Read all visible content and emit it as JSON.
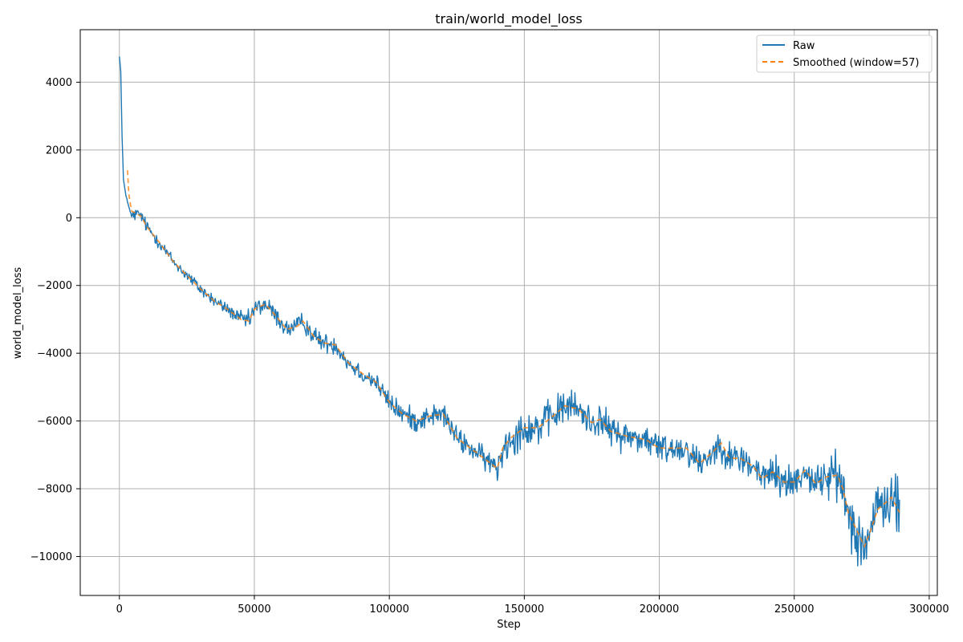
{
  "chart_data": {
    "type": "line",
    "title": "train/world_model_loss",
    "xlabel": "Step",
    "ylabel": "world_model_loss",
    "xlim": [
      -14500,
      303000
    ],
    "ylim": [
      -11150,
      5550
    ],
    "x_ticks": [
      0,
      50000,
      100000,
      150000,
      200000,
      250000,
      300000
    ],
    "y_ticks": [
      -10000,
      -8000,
      -6000,
      -4000,
      -2000,
      0,
      2000,
      4000
    ],
    "grid": true,
    "legend_position": "top-right",
    "series": [
      {
        "name": "Raw",
        "color": "#1f77b4",
        "style": "solid",
        "noise_amplitude": "varies",
        "points": [
          [
            0,
            4800
          ],
          [
            500,
            4300
          ],
          [
            1000,
            2400
          ],
          [
            1500,
            1100
          ],
          [
            2500,
            650
          ],
          [
            3500,
            300
          ],
          [
            4500,
            50
          ],
          [
            6000,
            100
          ],
          [
            8000,
            80
          ],
          [
            10000,
            -250
          ],
          [
            15000,
            -750
          ],
          [
            20000,
            -1300
          ],
          [
            25000,
            -1700
          ],
          [
            30000,
            -2100
          ],
          [
            35000,
            -2450
          ],
          [
            40000,
            -2700
          ],
          [
            45000,
            -3000
          ],
          [
            48000,
            -3050
          ],
          [
            50000,
            -2700
          ],
          [
            54000,
            -2550
          ],
          [
            58000,
            -2900
          ],
          [
            62000,
            -3300
          ],
          [
            66000,
            -3200
          ],
          [
            68000,
            -3050
          ],
          [
            72000,
            -3500
          ],
          [
            76000,
            -3700
          ],
          [
            80000,
            -3750
          ],
          [
            85000,
            -4300
          ],
          [
            90000,
            -4600
          ],
          [
            95000,
            -4850
          ],
          [
            100000,
            -5450
          ],
          [
            105000,
            -5800
          ],
          [
            110000,
            -6000
          ],
          [
            115000,
            -5850
          ],
          [
            120000,
            -5800
          ],
          [
            125000,
            -6500
          ],
          [
            130000,
            -6800
          ],
          [
            135000,
            -7100
          ],
          [
            140000,
            -7400
          ],
          [
            142000,
            -6800
          ],
          [
            145000,
            -6500
          ],
          [
            150000,
            -6200
          ],
          [
            155000,
            -6200
          ],
          [
            160000,
            -5900
          ],
          [
            165000,
            -5550
          ],
          [
            170000,
            -5650
          ],
          [
            175000,
            -6050
          ],
          [
            178000,
            -5950
          ],
          [
            182000,
            -6300
          ],
          [
            188000,
            -6450
          ],
          [
            195000,
            -6550
          ],
          [
            200000,
            -6800
          ],
          [
            205000,
            -6800
          ],
          [
            210000,
            -6800
          ],
          [
            215000,
            -7250
          ],
          [
            220000,
            -6900
          ],
          [
            223000,
            -6650
          ],
          [
            226000,
            -7100
          ],
          [
            230000,
            -7100
          ],
          [
            235000,
            -7350
          ],
          [
            238000,
            -7700
          ],
          [
            242000,
            -7500
          ],
          [
            246000,
            -7800
          ],
          [
            250000,
            -7800
          ],
          [
            254000,
            -7450
          ],
          [
            258000,
            -7850
          ],
          [
            262000,
            -7650
          ],
          [
            266000,
            -7600
          ],
          [
            268000,
            -8000
          ],
          [
            270000,
            -8700
          ],
          [
            273000,
            -9200
          ],
          [
            276000,
            -9700
          ],
          [
            278000,
            -9300
          ],
          [
            281000,
            -8600
          ],
          [
            284000,
            -8400
          ],
          [
            286000,
            -8250
          ],
          [
            289000,
            -8700
          ]
        ]
      },
      {
        "name": "Smoothed (window=57)",
        "color": "#ff7f0e",
        "style": "dashed",
        "points": [
          [
            3000,
            1400
          ],
          [
            3500,
            700
          ],
          [
            4500,
            200
          ],
          [
            6000,
            130
          ],
          [
            8000,
            50
          ],
          [
            10000,
            -250
          ],
          [
            15000,
            -750
          ],
          [
            20000,
            -1300
          ],
          [
            25000,
            -1700
          ],
          [
            30000,
            -2100
          ],
          [
            35000,
            -2450
          ],
          [
            40000,
            -2700
          ],
          [
            45000,
            -3000
          ],
          [
            48000,
            -3050
          ],
          [
            50000,
            -2700
          ],
          [
            54000,
            -2550
          ],
          [
            58000,
            -2900
          ],
          [
            62000,
            -3300
          ],
          [
            66000,
            -3200
          ],
          [
            68000,
            -3050
          ],
          [
            72000,
            -3500
          ],
          [
            76000,
            -3700
          ],
          [
            80000,
            -3750
          ],
          [
            85000,
            -4300
          ],
          [
            90000,
            -4600
          ],
          [
            95000,
            -4850
          ],
          [
            100000,
            -5450
          ],
          [
            105000,
            -5800
          ],
          [
            110000,
            -6000
          ],
          [
            115000,
            -5850
          ],
          [
            120000,
            -5800
          ],
          [
            125000,
            -6500
          ],
          [
            130000,
            -6800
          ],
          [
            135000,
            -7100
          ],
          [
            140000,
            -7400
          ],
          [
            142000,
            -6800
          ],
          [
            145000,
            -6500
          ],
          [
            150000,
            -6200
          ],
          [
            155000,
            -6200
          ],
          [
            160000,
            -5900
          ],
          [
            165000,
            -5550
          ],
          [
            170000,
            -5650
          ],
          [
            175000,
            -6050
          ],
          [
            178000,
            -5950
          ],
          [
            182000,
            -6300
          ],
          [
            188000,
            -6450
          ],
          [
            195000,
            -6550
          ],
          [
            200000,
            -6800
          ],
          [
            205000,
            -6800
          ],
          [
            210000,
            -6800
          ],
          [
            215000,
            -7250
          ],
          [
            220000,
            -6900
          ],
          [
            223000,
            -6650
          ],
          [
            226000,
            -7100
          ],
          [
            230000,
            -7100
          ],
          [
            235000,
            -7350
          ],
          [
            238000,
            -7700
          ],
          [
            242000,
            -7500
          ],
          [
            246000,
            -7800
          ],
          [
            250000,
            -7800
          ],
          [
            254000,
            -7450
          ],
          [
            258000,
            -7850
          ],
          [
            262000,
            -7650
          ],
          [
            266000,
            -7600
          ],
          [
            268000,
            -8000
          ],
          [
            270000,
            -8700
          ],
          [
            273000,
            -9200
          ],
          [
            276000,
            -9700
          ],
          [
            278000,
            -9300
          ],
          [
            281000,
            -8600
          ],
          [
            284000,
            -8400
          ],
          [
            286000,
            -8250
          ],
          [
            289000,
            -8700
          ]
        ]
      }
    ]
  }
}
